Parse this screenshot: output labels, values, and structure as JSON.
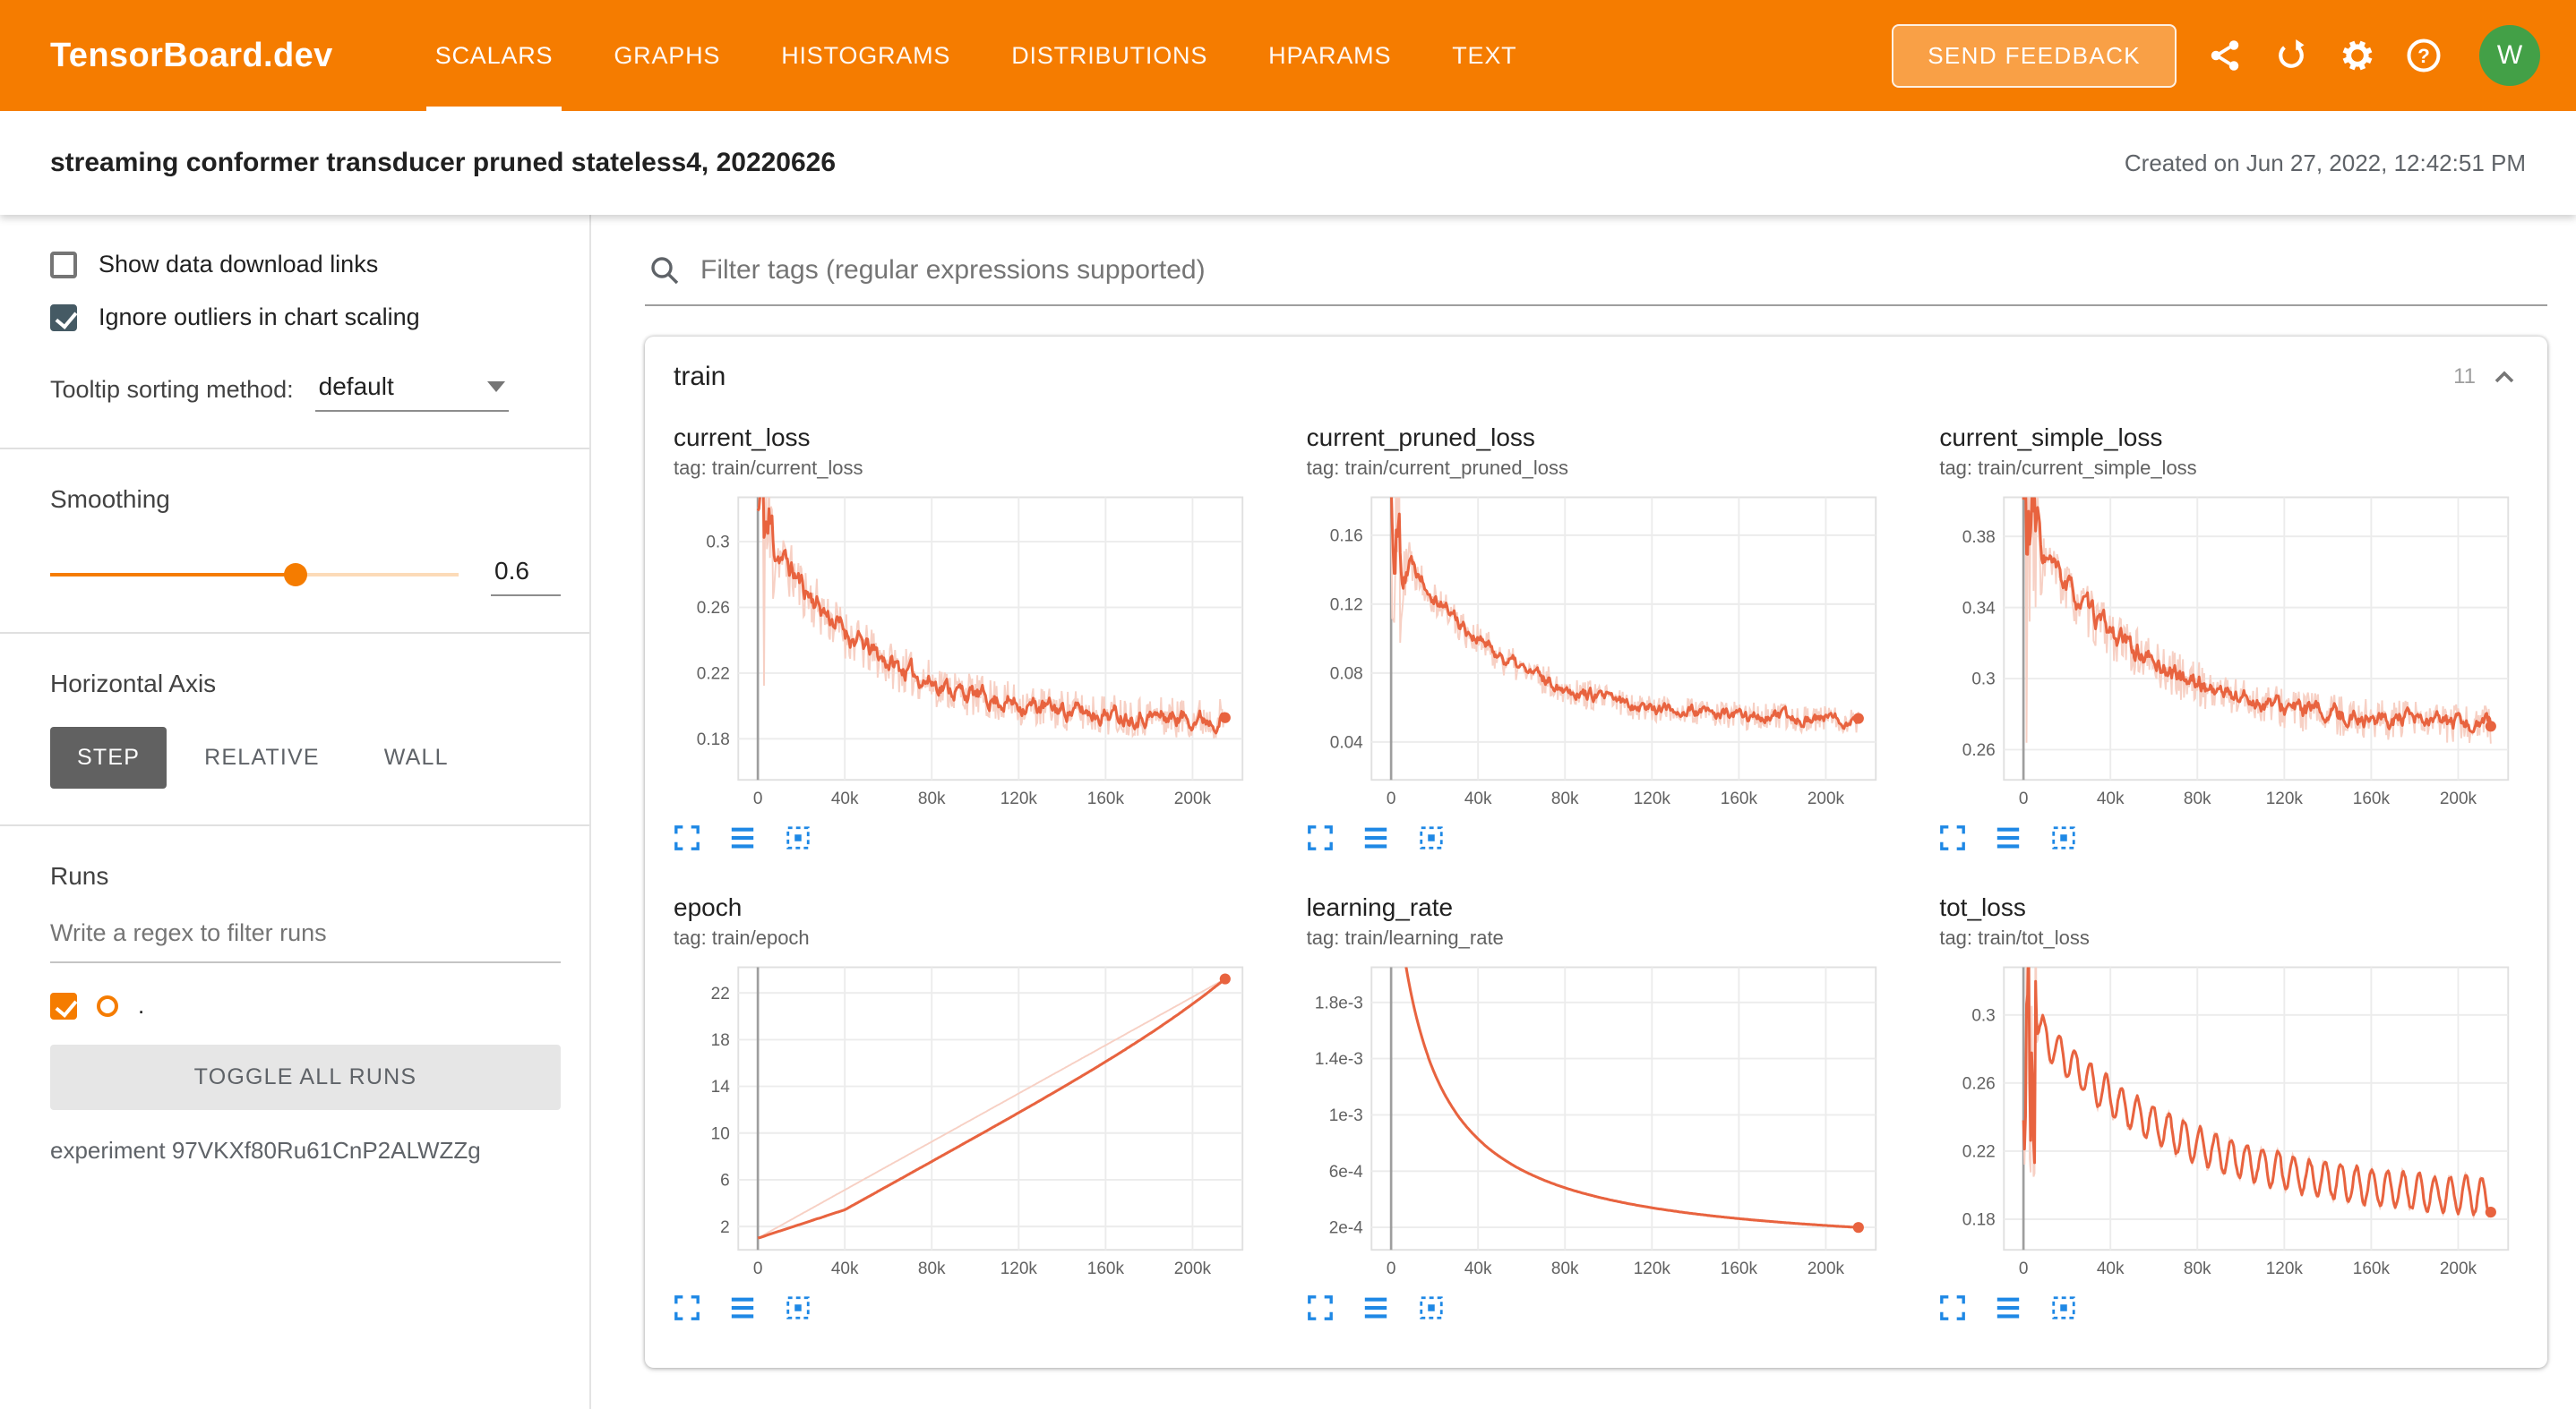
{
  "header": {
    "brand": "TensorBoard.dev",
    "tabs": [
      {
        "label": "SCALARS",
        "active": true
      },
      {
        "label": "GRAPHS",
        "active": false
      },
      {
        "label": "HISTOGRAMS",
        "active": false
      },
      {
        "label": "DISTRIBUTIONS",
        "active": false
      },
      {
        "label": "HPARAMS",
        "active": false
      },
      {
        "label": "TEXT",
        "active": false
      }
    ],
    "feedback_label": "SEND FEEDBACK",
    "actions": [
      "share-icon",
      "refresh-icon",
      "settings-icon",
      "help-icon"
    ],
    "avatar": "W"
  },
  "subheader": {
    "title": "streaming conformer transducer pruned stateless4, 20220626",
    "created": "Created on Jun 27, 2022, 12:42:51 PM"
  },
  "sidebar": {
    "show_download": {
      "label": "Show data download links",
      "checked": false
    },
    "ignore_outliers": {
      "label": "Ignore outliers in chart scaling",
      "checked": true
    },
    "tooltip_sorting": {
      "label": "Tooltip sorting method:",
      "value": "default"
    },
    "smoothing": {
      "label": "Smoothing",
      "value": "0.6",
      "fraction": 0.6
    },
    "horizontal_axis": {
      "label": "Horizontal Axis",
      "options": [
        "STEP",
        "RELATIVE",
        "WALL"
      ],
      "selected": "STEP"
    },
    "runs": {
      "label": "Runs",
      "filter_placeholder": "Write a regex to filter runs",
      "run_name": ".",
      "run_checked": true,
      "toggle_all": "TOGGLE ALL RUNS",
      "experiment": "experiment 97VKXf80Ru61CnP2ALWZZg"
    }
  },
  "main": {
    "filter_placeholder": "Filter tags (regular expressions supported)",
    "group": {
      "name": "train",
      "count": "11"
    }
  },
  "icons": {
    "filter": "search-icon",
    "card_collapse": "collapse-icon",
    "chart_toolbar": [
      "expand-chart-icon",
      "data-table-icon",
      "fit-domain-icon"
    ]
  },
  "colors": {
    "accent": "#f57c00",
    "line": "#e8633f",
    "line_light": "#f7d0c4",
    "toolbar_icon": "#1e88e5",
    "avatar_bg": "#43a047",
    "zero_line": "#9e9e9e",
    "grid": "#ececec"
  },
  "chart_defaults": {
    "x_ticks": [
      "0",
      "40k",
      "80k",
      "120k",
      "160k",
      "200k"
    ],
    "x_tick_values": [
      0,
      40000,
      80000,
      120000,
      160000,
      200000
    ],
    "x_range": [
      -9000,
      223000
    ],
    "x_max": 215000,
    "color": "#e8633f",
    "color_light": "#f7d0c4"
  },
  "chart_data": [
    {
      "type": "line",
      "title": "current_loss",
      "tag": "tag: train/current_loss",
      "y_ticks": [
        "0.18",
        "0.22",
        "0.26",
        "0.3"
      ],
      "y_tick_values": [
        0.18,
        0.22,
        0.26,
        0.3
      ],
      "y_range": [
        0.155,
        0.327
      ],
      "series": {
        "shape": "noisy_decay",
        "start": 0.315,
        "end": 0.191,
        "decay": 2.1e-05,
        "noise": 0.02,
        "spike_start": true,
        "spike_mult": 7,
        "smooth": 0.7
      },
      "seed": 11,
      "summary": "noisy loss decaying from ~0.32 to ~0.19 over 215k steps"
    },
    {
      "type": "line",
      "title": "current_pruned_loss",
      "tag": "tag: train/current_pruned_loss",
      "y_ticks": [
        "0.04",
        "0.08",
        "0.12",
        "0.16"
      ],
      "y_tick_values": [
        0.04,
        0.08,
        0.12,
        0.16
      ],
      "y_range": [
        0.018,
        0.182
      ],
      "series": {
        "shape": "noisy_decay",
        "start": 0.165,
        "end": 0.052,
        "decay": 2.2e-05,
        "noise": 0.013,
        "spike_start": true,
        "spike_mult": 7,
        "smooth": 0.7
      },
      "seed": 22,
      "summary": "noisy pruned loss decaying from ~0.17 to ~0.05 over 215k steps"
    },
    {
      "type": "line",
      "title": "current_simple_loss",
      "tag": "tag: train/current_simple_loss",
      "y_ticks": [
        "0.26",
        "0.3",
        "0.34",
        "0.38"
      ],
      "y_tick_values": [
        0.26,
        0.3,
        0.34,
        0.38
      ],
      "y_range": [
        0.243,
        0.402
      ],
      "series": {
        "shape": "noisy_decay",
        "start": 0.386,
        "end": 0.272,
        "decay": 1.9e-05,
        "noise": 0.018,
        "spike_start": true,
        "spike_mult": 7,
        "smooth": 0.7
      },
      "seed": 33,
      "summary": "noisy simple loss decaying from ~0.39 to ~0.27 over 215k steps"
    },
    {
      "type": "line",
      "title": "epoch",
      "tag": "tag: train/epoch",
      "y_ticks": [
        "2",
        "6",
        "10",
        "14",
        "18",
        "22"
      ],
      "y_tick_values": [
        2,
        6,
        10,
        14,
        18,
        22
      ],
      "y_range": [
        0,
        24.2
      ],
      "series": {
        "shape": "linear",
        "start": 1.0,
        "end": 23.2,
        "gap": 1.7
      },
      "seed": 44,
      "summary": "epoch counter rising linearly from ~1 to ~23 over 215k steps"
    },
    {
      "type": "line",
      "title": "learning_rate",
      "tag": "tag: train/learning_rate",
      "y_ticks": [
        "2e-4",
        "6e-4",
        "1e-3",
        "1.4e-3",
        "1.8e-3"
      ],
      "y_tick_values": [
        0.0002,
        0.0006,
        0.001,
        0.0014,
        0.0018
      ],
      "y_range": [
        4e-05,
        0.00205
      ],
      "series": {
        "shape": "reciprocal",
        "a": 46,
        "t0": 15500
      },
      "seed": 55,
      "summary": "learning rate decaying from above 1.8e-3 down to ~2e-4 at 215k steps"
    },
    {
      "type": "line",
      "title": "tot_loss",
      "tag": "tag: train/tot_loss",
      "y_ticks": [
        "0.18",
        "0.22",
        "0.26",
        "0.3"
      ],
      "y_tick_values": [
        0.18,
        0.22,
        0.26,
        0.3
      ],
      "y_range": [
        0.162,
        0.328
      ],
      "series": {
        "shape": "osc_decay",
        "start": 0.302,
        "end": 0.188,
        "decay": 1.45e-05,
        "osc_amp": 0.011,
        "period": 7200,
        "noise": 0.002,
        "spike_start": true,
        "smooth": 0.35
      },
      "seed": 66,
      "summary": "total loss with sawtooth oscillation decaying from ~0.30 to ~0.19"
    }
  ]
}
